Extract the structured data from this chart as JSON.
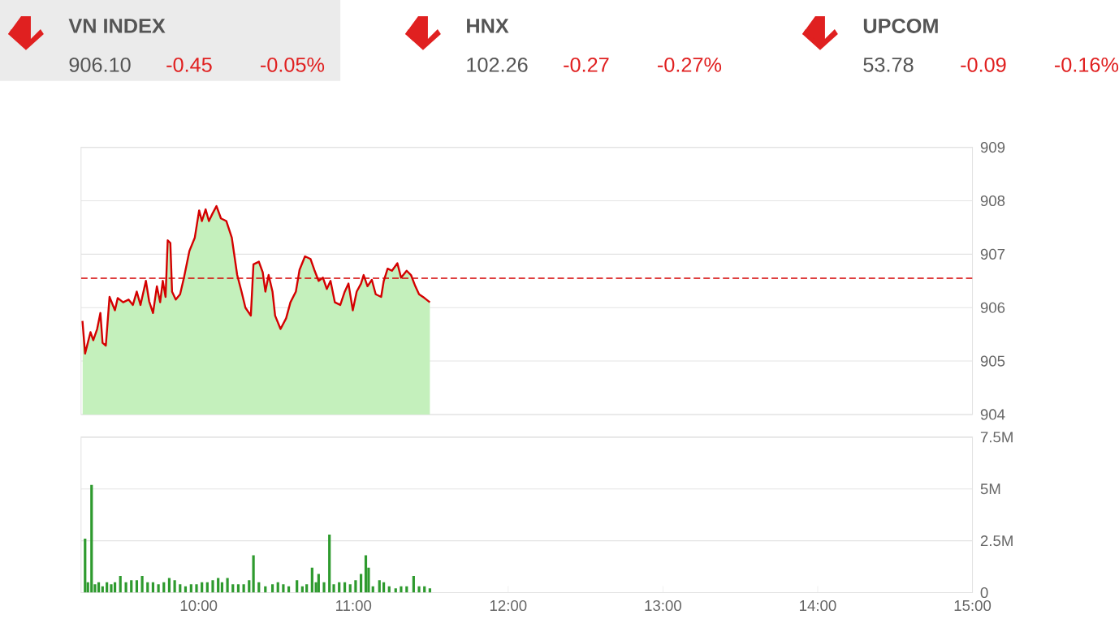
{
  "chart_data": [
    {
      "type": "other",
      "annotations": [
        "VN INDEX",
        "906.10",
        "-0.45",
        "-0.05%",
        "HNX",
        "102.26",
        "-0.27",
        "-0.27%",
        "UPCOM",
        "53.78",
        "-0.09",
        "-0.16%"
      ]
    },
    {
      "type": "area",
      "x": [
        9.249,
        9.266,
        9.301,
        9.319,
        9.344,
        9.365,
        9.379,
        9.4,
        9.424,
        9.459,
        9.477,
        9.512,
        9.547,
        9.575,
        9.6,
        9.624,
        9.659,
        9.68,
        9.705,
        9.73,
        9.751,
        9.768,
        9.786,
        9.8,
        9.817,
        9.828,
        9.852,
        9.88,
        9.905,
        9.94,
        9.975,
        10.003,
        10.021,
        10.045,
        10.066,
        10.091,
        10.115,
        10.144,
        10.179,
        10.214,
        10.249,
        10.277,
        10.302,
        10.337,
        10.354,
        10.389,
        10.414,
        10.431,
        10.452,
        10.477,
        10.494,
        10.529,
        10.565,
        10.593,
        10.628,
        10.652,
        10.687,
        10.723,
        10.747,
        10.775,
        10.803,
        10.828,
        10.852,
        10.88,
        10.915,
        10.944,
        10.968,
        10.996,
        11.021,
        11.049,
        11.066,
        11.091,
        11.119,
        11.144,
        11.179,
        11.196,
        11.221,
        11.249,
        11.284,
        11.308,
        11.344,
        11.372,
        11.4,
        11.424,
        11.459,
        11.494
      ],
      "series": [
        {
          "color": "#c4f0bc",
          "values": [
            905.75,
            905.14,
            905.54,
            905.39,
            905.6,
            905.9,
            905.34,
            905.29,
            906.2,
            905.95,
            906.18,
            906.1,
            906.15,
            906.05,
            906.3,
            906.05,
            906.5,
            906.12,
            905.9,
            906.4,
            906.1,
            906.5,
            906.2,
            907.26,
            907.21,
            906.3,
            906.15,
            906.25,
            906.56,
            907.06,
            907.31,
            907.82,
            907.62,
            907.84,
            907.62,
            907.77,
            907.9,
            907.67,
            907.62,
            907.31,
            906.61,
            906.3,
            906.0,
            905.85,
            906.81,
            906.86,
            906.66,
            906.3,
            906.61,
            906.3,
            905.85,
            905.6,
            905.8,
            906.1,
            906.3,
            906.71,
            906.96,
            906.91,
            906.71,
            906.5,
            906.56,
            906.35,
            906.5,
            906.1,
            906.05,
            906.3,
            906.45,
            905.95,
            906.3,
            906.45,
            906.61,
            906.4,
            906.52,
            906.25,
            906.2,
            906.5,
            906.73,
            906.69,
            906.83,
            906.56,
            906.69,
            906.61,
            906.4,
            906.25,
            906.18,
            906.1
          ]
        },
        {
          "type": "line",
          "color": "#d40000",
          "values": [
            905.75,
            905.14,
            905.54,
            905.39,
            905.6,
            905.9,
            905.34,
            905.29,
            906.2,
            905.95,
            906.18,
            906.1,
            906.15,
            906.05,
            906.3,
            906.05,
            906.5,
            906.12,
            905.9,
            906.4,
            906.1,
            906.5,
            906.2,
            907.26,
            907.21,
            906.3,
            906.15,
            906.25,
            906.56,
            907.06,
            907.31,
            907.82,
            907.62,
            907.84,
            907.62,
            907.77,
            907.9,
            907.67,
            907.62,
            907.31,
            906.61,
            906.3,
            906.0,
            905.85,
            906.81,
            906.86,
            906.66,
            906.3,
            906.61,
            906.3,
            905.85,
            905.6,
            905.8,
            906.1,
            906.3,
            906.71,
            906.96,
            906.91,
            906.71,
            906.5,
            906.56,
            906.35,
            906.5,
            906.1,
            906.05,
            906.3,
            906.45,
            905.95,
            906.3,
            906.45,
            906.61,
            906.4,
            906.52,
            906.25,
            906.2,
            906.5,
            906.73,
            906.69,
            906.83,
            906.56,
            906.69,
            906.61,
            906.4,
            906.25,
            906.18,
            906.1
          ]
        }
      ],
      "xlim": [
        9.24,
        15
      ],
      "ylim": [
        904,
        909
      ],
      "yticks": [
        904,
        905,
        906,
        907,
        908,
        909
      ],
      "grid": "y",
      "tick_labels": "y",
      "ref_lines": [
        {
          "axis": "y",
          "value": 906.55,
          "color": "#d40000",
          "line_style": "dashed"
        }
      ]
    },
    {
      "type": "bar",
      "x": [
        9.266,
        9.284,
        9.308,
        9.33,
        9.354,
        9.379,
        9.407,
        9.435,
        9.459,
        9.494,
        9.53,
        9.565,
        9.6,
        9.635,
        9.67,
        9.705,
        9.74,
        9.775,
        9.81,
        9.845,
        9.88,
        9.915,
        9.951,
        9.986,
        10.021,
        10.056,
        10.091,
        10.126,
        10.151,
        10.186,
        10.221,
        10.256,
        10.291,
        10.326,
        10.354,
        10.389,
        10.431,
        10.477,
        10.512,
        10.547,
        10.582,
        10.635,
        10.67,
        10.698,
        10.733,
        10.758,
        10.775,
        10.81,
        10.845,
        10.873,
        10.908,
        10.944,
        10.979,
        11.014,
        11.049,
        11.08,
        11.098,
        11.126,
        11.168,
        11.196,
        11.231,
        11.273,
        11.308,
        11.344,
        11.389,
        11.424,
        11.459,
        11.494
      ],
      "values": [
        2.6,
        0.5,
        5.2,
        0.4,
        0.5,
        0.3,
        0.5,
        0.4,
        0.5,
        0.8,
        0.5,
        0.6,
        0.6,
        0.8,
        0.5,
        0.5,
        0.4,
        0.5,
        0.7,
        0.6,
        0.4,
        0.3,
        0.4,
        0.4,
        0.5,
        0.5,
        0.6,
        0.7,
        0.5,
        0.7,
        0.4,
        0.4,
        0.4,
        0.6,
        1.8,
        0.5,
        0.3,
        0.4,
        0.5,
        0.4,
        0.3,
        0.6,
        0.3,
        0.4,
        1.2,
        0.5,
        0.9,
        0.5,
        2.8,
        0.4,
        0.5,
        0.5,
        0.4,
        0.6,
        0.9,
        1.8,
        1.2,
        0.3,
        0.6,
        0.5,
        0.3,
        0.2,
        0.3,
        0.3,
        0.8,
        0.3,
        0.3,
        0.2
      ],
      "color": "#2e9a2e",
      "xlim": [
        9.24,
        15
      ],
      "ylim": [
        0,
        7.5
      ],
      "yticks": [
        0,
        {
          "value": 2.5,
          "label": "2.5M"
        },
        {
          "value": 5,
          "label": "5M"
        },
        {
          "value": 7.5,
          "label": "7.5M"
        }
      ],
      "xticks": [
        {
          "value": 10,
          "label": "10:00"
        },
        {
          "value": 11,
          "label": "11:00"
        },
        {
          "value": 12,
          "label": "12:00"
        },
        {
          "value": 13,
          "label": "13:00"
        },
        {
          "value": 14,
          "label": "14:00"
        },
        {
          "value": 15,
          "label": "15:00"
        }
      ],
      "grid": "y"
    }
  ]
}
